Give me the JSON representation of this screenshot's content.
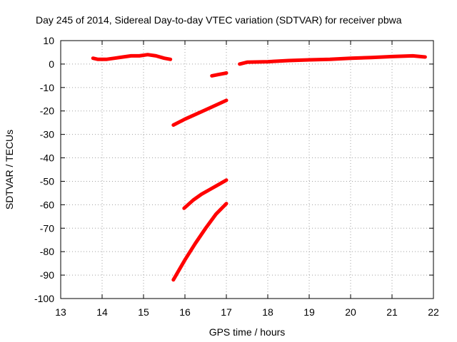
{
  "chart_data": {
    "type": "scatter",
    "title": "Day 245 of 2014, Sidereal Day-to-day VTEC variation (SDTVAR) for receiver pbwa",
    "xlabel": "GPS time / hours",
    "ylabel": "SDTVAR / TECUs",
    "xlim": [
      13,
      22
    ],
    "ylim": [
      -100,
      10
    ],
    "xticks": [
      "13",
      "14",
      "15",
      "16",
      "17",
      "18",
      "19",
      "20",
      "21",
      "22"
    ],
    "yticks": [
      "10",
      "0",
      "-10",
      "-20",
      "-30",
      "-40",
      "-50",
      "-60",
      "-70",
      "-80",
      "-90",
      "-100"
    ],
    "grid": true,
    "series": [
      {
        "x": [
          13.78,
          13.9,
          14.1,
          14.3,
          14.5,
          14.7,
          14.9,
          15.1,
          15.3,
          15.5,
          15.65
        ],
        "y": [
          2.5,
          2.0,
          2.0,
          2.5,
          3.0,
          3.5,
          3.5,
          4.0,
          3.5,
          2.5,
          2.0
        ]
      },
      {
        "x": [
          16.65,
          16.8,
          16.95,
          17.0
        ],
        "y": [
          -5.0,
          -4.5,
          -4.0,
          -3.8
        ]
      },
      {
        "x": [
          17.32,
          17.5,
          18.0,
          18.5,
          19.0,
          19.5,
          20.0,
          20.5,
          21.0,
          21.5,
          21.8
        ],
        "y": [
          0.0,
          0.8,
          1.0,
          1.5,
          1.8,
          2.0,
          2.5,
          2.8,
          3.2,
          3.5,
          3.0
        ]
      },
      {
        "x": [
          15.72,
          16.0,
          16.25,
          16.5,
          16.75,
          17.0
        ],
        "y": [
          -26.0,
          -23.5,
          -21.5,
          -19.5,
          -17.5,
          -15.5
        ]
      },
      {
        "x": [
          15.98,
          16.2,
          16.4,
          16.6,
          16.8,
          17.0
        ],
        "y": [
          -61.5,
          -58.0,
          -55.5,
          -53.5,
          -51.5,
          -49.5
        ]
      },
      {
        "x": [
          15.72,
          16.0,
          16.25,
          16.5,
          16.75,
          17.0
        ],
        "y": [
          -92.0,
          -83.5,
          -76.5,
          -70.0,
          -64.0,
          -59.5
        ]
      }
    ],
    "colors": {
      "series": "#ff0000",
      "grid": "#a0a0a0",
      "axis": "#000000"
    }
  }
}
